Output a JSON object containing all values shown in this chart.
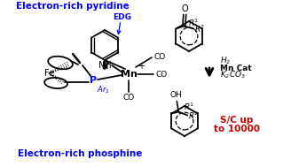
{
  "bg_color": "#ffffff",
  "blue_color": "#0000ff",
  "black_color": "#000000",
  "red_color": "#cc0000",
  "text_electron_rich_pyridine": "Electron-rich pyridine",
  "text_electron_rich_phosphine": "Electron-rich phosphine",
  "text_edg": "EDG",
  "text_mn_cat": "Mn Cat",
  "text_sc_up": "S/C up",
  "text_to10000": "to 10000",
  "figsize": [
    3.19,
    1.89
  ],
  "dpi": 100,
  "xlim": [
    0,
    319
  ],
  "ylim": [
    0,
    189
  ]
}
